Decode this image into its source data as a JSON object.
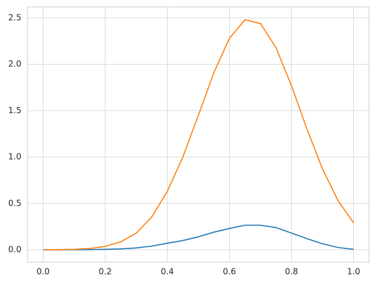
{
  "chart_data": {
    "type": "line",
    "x": [
      0,
      0.05,
      0.1,
      0.15,
      0.2,
      0.25,
      0.3,
      0.35,
      0.4,
      0.45,
      0.5,
      0.55,
      0.6,
      0.65,
      0.7,
      0.75,
      0.8,
      0.85,
      0.9,
      0.95,
      1.0
    ],
    "series": [
      {
        "color": "#1f77b4",
        "values": [
          0,
          0,
          0.001,
          0.002,
          0.005,
          0.01,
          0.02,
          0.04,
          0.07,
          0.1,
          0.14,
          0.19,
          0.23,
          0.265,
          0.265,
          0.24,
          0.18,
          0.12,
          0.065,
          0.025,
          0.005
        ]
      },
      {
        "color": "#ff7f0e",
        "values": [
          0,
          0.002,
          0.005,
          0.014,
          0.037,
          0.086,
          0.18,
          0.355,
          0.63,
          1.0,
          1.45,
          1.91,
          2.28,
          2.48,
          2.44,
          2.18,
          1.77,
          1.3,
          0.87,
          0.53,
          0.29
        ]
      }
    ],
    "xlim": [
      -0.05,
      1.05
    ],
    "ylim": [
      -0.134,
      2.619
    ],
    "xticks": [
      {
        "value": 0,
        "label": "0.0"
      },
      0.2,
      0.4,
      0.6,
      0.8,
      {
        "value": 1,
        "label": "1.0"
      }
    ],
    "yticks": [
      {
        "value": 0,
        "label": "0.0"
      },
      0.5,
      {
        "value": 1,
        "label": "1.0"
      },
      1.5,
      {
        "value": 2,
        "label": "2.0"
      },
      2.5
    ],
    "grid": true
  }
}
